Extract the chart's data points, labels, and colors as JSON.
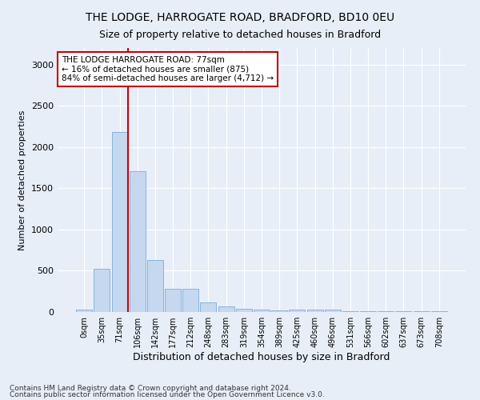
{
  "title1": "THE LODGE, HARROGATE ROAD, BRADFORD, BD10 0EU",
  "title2": "Size of property relative to detached houses in Bradford",
  "xlabel": "Distribution of detached houses by size in Bradford",
  "ylabel": "Number of detached properties",
  "categories": [
    "0sqm",
    "35sqm",
    "71sqm",
    "106sqm",
    "142sqm",
    "177sqm",
    "212sqm",
    "248sqm",
    "283sqm",
    "319sqm",
    "354sqm",
    "389sqm",
    "425sqm",
    "460sqm",
    "496sqm",
    "531sqm",
    "566sqm",
    "602sqm",
    "637sqm",
    "673sqm",
    "708sqm"
  ],
  "bar_heights": [
    30,
    520,
    2180,
    1710,
    635,
    280,
    280,
    120,
    70,
    40,
    30,
    20,
    30,
    25,
    30,
    5,
    5,
    5,
    5,
    5,
    5
  ],
  "bar_color": "#c5d8f0",
  "bar_edge_color": "#7aadd4",
  "vline_color": "#cc0000",
  "annotation_text": "THE LODGE HARROGATE ROAD: 77sqm\n← 16% of detached houses are smaller (875)\n84% of semi-detached houses are larger (4,712) →",
  "annotation_box_facecolor": "#ffffff",
  "annotation_box_edgecolor": "#cc0000",
  "ylim": [
    0,
    3200
  ],
  "yticks": [
    0,
    500,
    1000,
    1500,
    2000,
    2500,
    3000
  ],
  "footnote1": "Contains HM Land Registry data © Crown copyright and database right 2024.",
  "footnote2": "Contains public sector information licensed under the Open Government Licence v3.0.",
  "background_color": "#e8eef8",
  "plot_bg_color": "#e8eef8"
}
